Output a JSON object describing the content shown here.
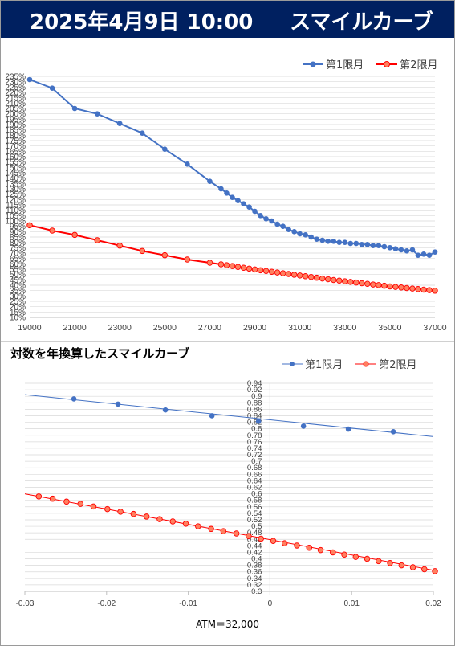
{
  "header": {
    "date": "2025年4月9日 10:00",
    "title": "スマイルカーブ",
    "bg_color": "#002060"
  },
  "chart2_title": "対数を年換算したスマイルカーブ",
  "chart_data": [
    {
      "type": "line",
      "title": "",
      "xlabel": "",
      "ylabel": "",
      "xlim": [
        19000,
        37000
      ],
      "ylim": [
        10,
        235
      ],
      "y_unit": "%",
      "x_ticks": [
        19000,
        21000,
        23000,
        25000,
        27000,
        29000,
        31000,
        33000,
        35000,
        37000
      ],
      "y_tick_step": 5,
      "grid": "horizontal",
      "legend": "top-right",
      "series": [
        {
          "name": "第1限月",
          "color": "#4472C4",
          "points": [
            [
              19000,
              232
            ],
            [
              20000,
              224
            ],
            [
              21000,
              205
            ],
            [
              22000,
              200
            ],
            [
              23000,
              191
            ],
            [
              24000,
              182
            ],
            [
              25000,
              167
            ],
            [
              26000,
              153
            ],
            [
              27000,
              137
            ],
            [
              27500,
              130
            ],
            [
              27750,
              126
            ],
            [
              28000,
              122
            ],
            [
              28250,
              119
            ],
            [
              28500,
              116
            ],
            [
              28750,
              113
            ],
            [
              29000,
              109
            ],
            [
              29250,
              105
            ],
            [
              29500,
              102
            ],
            [
              29750,
              100
            ],
            [
              30000,
              97
            ],
            [
              30250,
              95
            ],
            [
              30500,
              92
            ],
            [
              30750,
              90
            ],
            [
              31000,
              88
            ],
            [
              31250,
              87
            ],
            [
              31500,
              85
            ],
            [
              31750,
              83
            ],
            [
              32000,
              82
            ],
            [
              32250,
              81
            ],
            [
              32500,
              81
            ],
            [
              32750,
              80
            ],
            [
              33000,
              80
            ],
            [
              33250,
              79
            ],
            [
              33500,
              79
            ],
            [
              33750,
              78
            ],
            [
              34000,
              78
            ],
            [
              34250,
              77
            ],
            [
              34500,
              77
            ],
            [
              34750,
              76
            ],
            [
              35000,
              75
            ],
            [
              35250,
              74
            ],
            [
              35500,
              73
            ],
            [
              35750,
              72
            ],
            [
              36000,
              73
            ],
            [
              36250,
              68
            ],
            [
              36500,
              69
            ],
            [
              36750,
              68
            ],
            [
              37000,
              71
            ]
          ]
        },
        {
          "name": "第2限月",
          "color": "#FF0000",
          "marker_fill": "#FF8060",
          "points": [
            [
              19000,
              96
            ],
            [
              20000,
              91
            ],
            [
              21000,
              87
            ],
            [
              22000,
              82
            ],
            [
              23000,
              77
            ],
            [
              24000,
              72
            ],
            [
              25000,
              68
            ],
            [
              26000,
              64
            ],
            [
              27000,
              61
            ],
            [
              27500,
              59.5
            ],
            [
              27750,
              58.7
            ],
            [
              28000,
              57.9
            ],
            [
              28250,
              57.1
            ],
            [
              28500,
              56.3
            ],
            [
              28750,
              55.5
            ],
            [
              29000,
              54.7
            ],
            [
              29250,
              54
            ],
            [
              29500,
              53.3
            ],
            [
              29750,
              52.6
            ],
            [
              30000,
              51.9
            ],
            [
              30250,
              51.2
            ],
            [
              30500,
              50.5
            ],
            [
              30750,
              49.8
            ],
            [
              31000,
              49.1
            ],
            [
              31250,
              48.4
            ],
            [
              31500,
              47.7
            ],
            [
              31750,
              47
            ],
            [
              32000,
              46.3
            ],
            [
              32250,
              45.6
            ],
            [
              32500,
              44.9
            ],
            [
              32750,
              44.3
            ],
            [
              33000,
              43.7
            ],
            [
              33250,
              43.1
            ],
            [
              33500,
              42.5
            ],
            [
              33750,
              41.9
            ],
            [
              34000,
              41.3
            ],
            [
              34250,
              40.7
            ],
            [
              34500,
              40.1
            ],
            [
              34750,
              39.5
            ],
            [
              35000,
              38.9
            ],
            [
              35250,
              38.4
            ],
            [
              35500,
              37.9
            ],
            [
              35750,
              37.4
            ],
            [
              36000,
              36.9
            ],
            [
              36250,
              36.4
            ],
            [
              36500,
              35.9
            ],
            [
              36750,
              35.4
            ],
            [
              37000,
              34.9
            ]
          ]
        }
      ]
    },
    {
      "type": "scatter",
      "title": "対数を年換算したスマイルカーブ",
      "xlabel": "ATM＝32,000",
      "ylabel": "",
      "xlim": [
        -0.03,
        0.02
      ],
      "ylim": [
        0.3,
        0.94
      ],
      "x_ticks": [
        -0.03,
        -0.02,
        -0.01,
        0,
        0.01,
        0.02
      ],
      "y_tick_step": 0.02,
      "grid": "horizontal",
      "legend": "top-right",
      "series": [
        {
          "name": "第1限月",
          "color": "#4472C4",
          "trendline": [
            [
              -0.03,
              0.905
            ],
            [
              0.02,
              0.776
            ]
          ],
          "points": [
            [
              -0.024,
              0.892
            ],
            [
              -0.0186,
              0.876
            ],
            [
              -0.0128,
              0.858
            ],
            [
              -0.0071,
              0.84
            ],
            [
              -0.0014,
              0.823
            ],
            [
              0.0041,
              0.808
            ],
            [
              0.0096,
              0.799
            ],
            [
              0.0151,
              0.791
            ]
          ]
        },
        {
          "name": "第2限月",
          "color": "#FF0000",
          "marker_fill": "#FF8060",
          "trendline": [
            [
              -0.03,
              0.6
            ],
            [
              0.02,
              0.365
            ]
          ],
          "points": [
            [
              -0.0283,
              0.592
            ],
            [
              -0.0266,
              0.585
            ],
            [
              -0.0249,
              0.576
            ],
            [
              -0.0232,
              0.569
            ],
            [
              -0.0216,
              0.561
            ],
            [
              -0.0199,
              0.553
            ],
            [
              -0.0183,
              0.545
            ],
            [
              -0.0167,
              0.538
            ],
            [
              -0.0151,
              0.53
            ],
            [
              -0.0135,
              0.522
            ],
            [
              -0.0119,
              0.515
            ],
            [
              -0.0103,
              0.508
            ],
            [
              -0.0088,
              0.5
            ],
            [
              -0.0072,
              0.492
            ],
            [
              -0.0057,
              0.485
            ],
            [
              -0.0041,
              0.478
            ],
            [
              -0.0026,
              0.47
            ],
            [
              -0.0011,
              0.462
            ],
            [
              0.0004,
              0.455
            ],
            [
              0.0018,
              0.448
            ],
            [
              0.0033,
              0.441
            ],
            [
              0.0048,
              0.434
            ],
            [
              0.0062,
              0.427
            ],
            [
              0.0077,
              0.42
            ],
            [
              0.0091,
              0.413
            ],
            [
              0.0105,
              0.406
            ],
            [
              0.0119,
              0.4
            ],
            [
              0.0133,
              0.393
            ],
            [
              0.0147,
              0.387
            ],
            [
              0.0161,
              0.38
            ],
            [
              0.0175,
              0.374
            ],
            [
              0.0189,
              0.368
            ],
            [
              0.0202,
              0.362
            ]
          ]
        }
      ]
    }
  ]
}
